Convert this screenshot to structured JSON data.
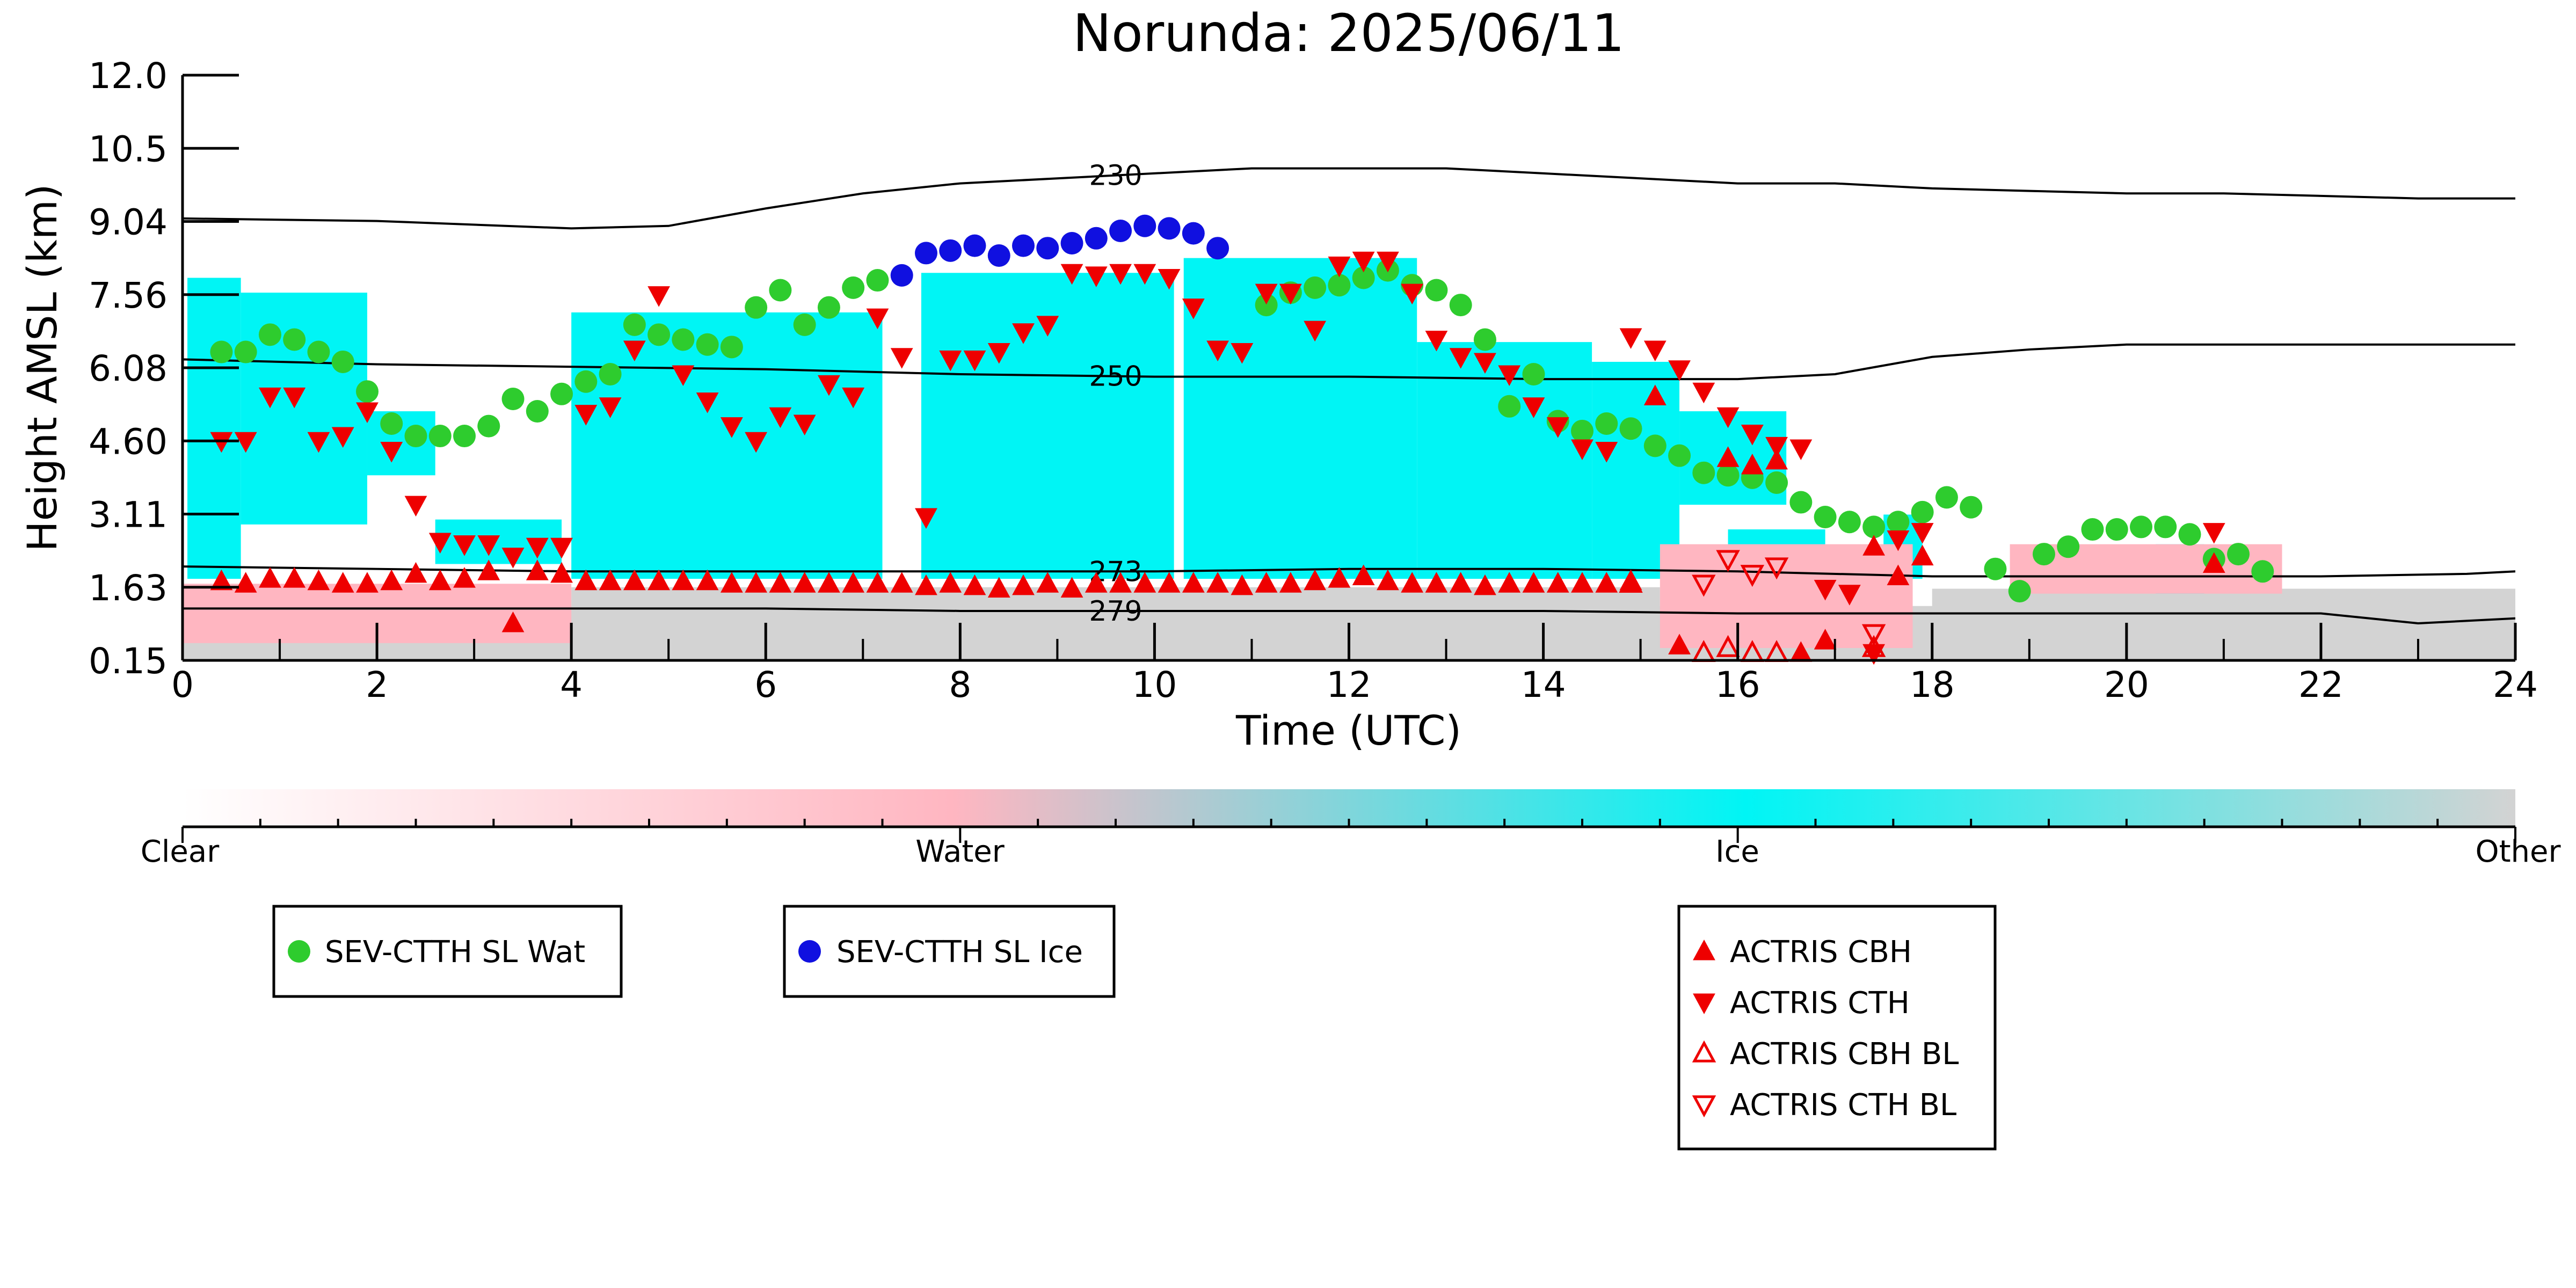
{
  "chart_data": {
    "type": "scatter",
    "title": "Norunda: 2025/06/11",
    "xlabel": "Time (UTC)",
    "ylabel": "Height AMSL (km)",
    "xlim": [
      0,
      24
    ],
    "x_ticks": [
      "0",
      "2",
      "4",
      "6",
      "8",
      "10",
      "12",
      "14",
      "16",
      "18",
      "20",
      "22",
      "24"
    ],
    "y_ticks": [
      "0.15",
      "1.63",
      "3.11",
      "4.60",
      "6.08",
      "7.56",
      "9.04",
      "10.5",
      "12.0"
    ],
    "y_tick_values": [
      0.15,
      1.63,
      3.11,
      4.6,
      6.08,
      7.56,
      9.04,
      10.5,
      12.0
    ],
    "colorbar": {
      "labels": [
        "Clear",
        "Water",
        "Ice",
        "Other"
      ],
      "colors": [
        "#ffffff",
        "#ffb6c1",
        "#00f5f5",
        "#d3d3d3"
      ]
    },
    "background_classes": {
      "ice_color": "#00f5f5",
      "water_color": "#ffb6c1",
      "other_color": "#d3d3d3",
      "ice_blocks": [
        {
          "x0": 0.05,
          "x1": 0.6,
          "ytop": 7.9,
          "ybot": 1.8
        },
        {
          "x0": 0.6,
          "x1": 1.9,
          "ytop": 7.6,
          "ybot": 2.9
        },
        {
          "x0": 1.9,
          "x1": 2.6,
          "ytop": 5.2,
          "ybot": 3.9
        },
        {
          "x0": 2.6,
          "x1": 3.9,
          "ytop": 3.0,
          "ybot": 2.1
        },
        {
          "x0": 4.0,
          "x1": 7.2,
          "ytop": 7.2,
          "ybot": 1.8
        },
        {
          "x0": 7.6,
          "x1": 10.2,
          "ytop": 8.0,
          "ybot": 1.8
        },
        {
          "x0": 10.3,
          "x1": 12.7,
          "ytop": 8.3,
          "ybot": 1.8
        },
        {
          "x0": 12.7,
          "x1": 14.5,
          "ytop": 6.6,
          "ybot": 1.8
        },
        {
          "x0": 14.5,
          "x1": 15.4,
          "ytop": 6.2,
          "ybot": 1.8
        },
        {
          "x0": 15.4,
          "x1": 16.5,
          "ytop": 5.2,
          "ybot": 3.3
        },
        {
          "x0": 15.9,
          "x1": 16.9,
          "ytop": 2.8,
          "ybot": 1.8
        },
        {
          "x0": 17.5,
          "x1": 17.9,
          "ytop": 3.1,
          "ybot": 1.8
        },
        {
          "x0": 20.3,
          "x1": 20.8,
          "ytop": 2.5,
          "ybot": 1.5
        }
      ],
      "water_blocks": [
        {
          "x0": 0.0,
          "x1": 4.0,
          "ytop": 1.7,
          "ybot": 0.5
        },
        {
          "x0": 15.2,
          "x1": 17.8,
          "ytop": 2.5,
          "ybot": 0.4
        },
        {
          "x0": 18.8,
          "x1": 21.6,
          "ytop": 2.5,
          "ybot": 1.5
        }
      ],
      "other_blocks": [
        {
          "x0": 0.0,
          "x1": 24.0,
          "ytop": 1.25,
          "ybot": 0.15
        },
        {
          "x0": 4.0,
          "x1": 15.2,
          "ytop": 1.63,
          "ybot": 0.15
        },
        {
          "x0": 18.0,
          "x1": 24.0,
          "ytop": 1.6,
          "ybot": 0.15
        }
      ]
    },
    "contours": [
      {
        "label": "230",
        "label_x": 9.6,
        "x": [
          0,
          2,
          4,
          5,
          6,
          7,
          8,
          9,
          10,
          11,
          12,
          13,
          14,
          15,
          16,
          17,
          18,
          19,
          20,
          21,
          22,
          23,
          24
        ],
        "y": [
          9.1,
          9.05,
          8.9,
          8.95,
          9.3,
          9.6,
          9.8,
          9.9,
          10.0,
          10.1,
          10.1,
          10.1,
          10.0,
          9.9,
          9.8,
          9.8,
          9.7,
          9.65,
          9.6,
          9.6,
          9.55,
          9.5,
          9.5
        ]
      },
      {
        "label": "250",
        "label_x": 9.6,
        "x": [
          0,
          2,
          4,
          6,
          8,
          10,
          12,
          14,
          15,
          16,
          17,
          18,
          19,
          20,
          21,
          22,
          23,
          24
        ],
        "y": [
          6.25,
          6.15,
          6.1,
          6.05,
          5.95,
          5.9,
          5.9,
          5.85,
          5.85,
          5.85,
          5.95,
          6.3,
          6.45,
          6.55,
          6.55,
          6.55,
          6.55,
          6.55
        ]
      },
      {
        "label": "273",
        "label_x": 9.6,
        "x": [
          0,
          2,
          4,
          6,
          8,
          10,
          12,
          14,
          16,
          18,
          20,
          22,
          23.5,
          24
        ],
        "y": [
          2.05,
          2.0,
          1.95,
          1.95,
          1.95,
          1.95,
          2.0,
          2.0,
          1.95,
          1.85,
          1.85,
          1.85,
          1.9,
          1.95
        ]
      },
      {
        "label": "279",
        "label_x": 9.6,
        "x": [
          0,
          2,
          4,
          6,
          8,
          10,
          12,
          14,
          16,
          18,
          20,
          22,
          23,
          24
        ],
        "y": [
          1.2,
          1.2,
          1.2,
          1.2,
          1.15,
          1.15,
          1.15,
          1.15,
          1.1,
          1.1,
          1.1,
          1.1,
          0.9,
          1.0
        ]
      }
    ],
    "series": [
      {
        "name": "SEV-CTTH SL Wat",
        "marker": "circle",
        "color": "#2ecc2e",
        "x": [
          0.4,
          0.65,
          0.9,
          1.15,
          1.4,
          1.65,
          1.9,
          2.15,
          2.4,
          2.65,
          2.9,
          3.15,
          3.4,
          3.65,
          3.9,
          4.15,
          4.4,
          4.65,
          4.9,
          5.15,
          5.4,
          5.65,
          5.9,
          6.15,
          6.4,
          6.65,
          6.9,
          7.15,
          11.15,
          11.4,
          11.65,
          11.9,
          12.15,
          12.4,
          12.65,
          12.9,
          13.15,
          13.4,
          13.65,
          13.9,
          14.15,
          14.4,
          14.65,
          14.9,
          15.15,
          15.4,
          15.65,
          15.9,
          16.15,
          16.4,
          16.65,
          16.9,
          17.15,
          17.4,
          17.65,
          17.9,
          18.15,
          18.4,
          18.65,
          18.9,
          19.15,
          19.4,
          19.65,
          19.9,
          20.15,
          20.4,
          20.65,
          20.9,
          21.15,
          21.4
        ],
        "y": [
          6.4,
          6.4,
          6.75,
          6.65,
          6.4,
          6.2,
          5.6,
          4.95,
          4.7,
          4.7,
          4.7,
          4.9,
          5.45,
          5.2,
          5.55,
          5.8,
          5.95,
          6.95,
          6.75,
          6.65,
          6.55,
          6.5,
          7.3,
          7.65,
          6.95,
          7.3,
          7.7,
          7.85,
          7.35,
          7.6,
          7.7,
          7.75,
          7.9,
          8.05,
          7.75,
          7.65,
          7.35,
          6.65,
          5.3,
          5.95,
          5.0,
          4.8,
          4.95,
          4.85,
          4.5,
          4.3,
          3.95,
          3.9,
          3.85,
          3.75,
          3.35,
          3.05,
          2.95,
          2.85,
          2.95,
          3.15,
          3.45,
          3.25,
          2.0,
          1.55,
          2.3,
          2.45,
          2.8,
          2.8,
          2.85,
          2.85,
          2.7,
          2.2,
          2.3,
          1.95
        ]
      },
      {
        "name": "SEV-CTTH SL Ice",
        "marker": "circle",
        "color": "#1010e0",
        "x": [
          7.4,
          7.65,
          7.9,
          8.15,
          8.4,
          8.65,
          8.9,
          9.15,
          9.4,
          9.65,
          9.9,
          10.15,
          10.4,
          10.65
        ],
        "y": [
          7.95,
          8.4,
          8.45,
          8.55,
          8.35,
          8.55,
          8.5,
          8.6,
          8.7,
          8.85,
          8.95,
          8.9,
          8.8,
          8.5
        ]
      },
      {
        "name": "ACTRIS CBH",
        "marker": "triangle-up",
        "color": "#ee0000",
        "x": [
          0.4,
          0.65,
          0.9,
          1.15,
          1.4,
          1.65,
          1.9,
          2.15,
          2.4,
          2.65,
          2.9,
          3.15,
          3.4,
          3.65,
          3.9,
          4.15,
          4.4,
          4.65,
          4.9,
          5.15,
          5.4,
          5.65,
          5.9,
          6.15,
          6.4,
          6.65,
          6.9,
          7.15,
          7.4,
          7.65,
          7.9,
          8.15,
          8.4,
          8.65,
          8.9,
          9.15,
          9.4,
          9.65,
          9.9,
          10.15,
          10.4,
          10.65,
          10.9,
          11.15,
          11.4,
          11.65,
          11.9,
          12.15,
          12.4,
          12.65,
          12.9,
          13.15,
          13.4,
          13.65,
          13.9,
          14.15,
          14.4,
          14.65,
          14.9,
          15.15,
          15.4,
          15.9,
          16.15,
          16.4,
          16.65,
          16.9,
          17.4,
          17.65,
          17.9,
          20.9
        ],
        "y": [
          1.75,
          1.7,
          1.8,
          1.8,
          1.75,
          1.7,
          1.7,
          1.75,
          1.9,
          1.75,
          1.8,
          1.95,
          0.9,
          1.95,
          1.9,
          1.75,
          1.75,
          1.75,
          1.75,
          1.75,
          1.75,
          1.7,
          1.7,
          1.7,
          1.7,
          1.7,
          1.7,
          1.7,
          1.7,
          1.65,
          1.7,
          1.65,
          1.6,
          1.65,
          1.7,
          1.6,
          1.7,
          1.7,
          1.7,
          1.7,
          1.7,
          1.7,
          1.65,
          1.7,
          1.7,
          1.75,
          1.8,
          1.85,
          1.75,
          1.7,
          1.7,
          1.7,
          1.65,
          1.7,
          1.7,
          1.7,
          1.7,
          1.7,
          1.75,
          5.5,
          0.45,
          4.25,
          4.1,
          4.2,
          0.3,
          0.55,
          2.45,
          1.85,
          2.25,
          2.1
        ]
      },
      {
        "name": "ACTRIS CTH",
        "marker": "triangle-down",
        "color": "#ee0000",
        "x": [
          0.4,
          0.65,
          0.9,
          1.15,
          1.4,
          1.65,
          1.9,
          2.15,
          2.4,
          2.65,
          2.9,
          3.15,
          3.4,
          3.65,
          3.9,
          4.15,
          4.4,
          4.65,
          4.9,
          5.15,
          5.4,
          5.65,
          5.9,
          6.15,
          6.4,
          6.65,
          6.9,
          7.15,
          7.4,
          7.65,
          7.9,
          8.15,
          8.4,
          8.65,
          8.9,
          9.15,
          9.4,
          9.65,
          9.9,
          10.15,
          10.4,
          10.65,
          10.9,
          11.15,
          11.4,
          11.65,
          11.9,
          12.15,
          12.4,
          12.65,
          12.9,
          13.15,
          13.4,
          13.65,
          13.9,
          14.15,
          14.4,
          14.65,
          14.9,
          15.15,
          15.4,
          15.65,
          15.9,
          16.15,
          16.4,
          16.65,
          16.9,
          17.15,
          17.4,
          17.65,
          17.9,
          20.9
        ],
        "y": [
          4.6,
          4.6,
          5.5,
          5.5,
          4.6,
          4.7,
          5.2,
          4.4,
          3.3,
          2.55,
          2.5,
          2.5,
          2.25,
          2.45,
          2.45,
          5.15,
          5.3,
          6.45,
          7.55,
          5.95,
          5.4,
          4.9,
          4.6,
          5.1,
          4.95,
          5.75,
          5.5,
          7.1,
          6.3,
          3.05,
          6.25,
          6.25,
          6.4,
          6.8,
          6.95,
          8.0,
          7.95,
          8.0,
          8.0,
          7.9,
          7.3,
          6.45,
          6.4,
          7.6,
          7.6,
          6.85,
          8.15,
          8.25,
          8.25,
          7.6,
          6.65,
          6.3,
          6.2,
          5.95,
          5.3,
          4.9,
          4.45,
          4.4,
          6.7,
          6.45,
          6.05,
          5.6,
          5.1,
          4.75,
          4.5,
          4.45,
          1.6,
          1.5,
          0.3,
          2.6,
          2.75,
          2.75
        ]
      },
      {
        "name": "ACTRIS CBH BL",
        "marker": "triangle-up-open",
        "color": "#ee0000",
        "x": [
          14.9,
          15.65,
          15.9,
          16.15,
          16.4,
          17.4
        ],
        "y": [
          1.7,
          0.3,
          0.4,
          0.3,
          0.3,
          0.4
        ]
      },
      {
        "name": "ACTRIS CTH BL",
        "marker": "triangle-down-open",
        "color": "#ee0000",
        "x": [
          15.65,
          15.9,
          16.15,
          16.4,
          17.4
        ],
        "y": [
          1.7,
          2.2,
          1.9,
          2.05,
          0.7
        ]
      }
    ]
  },
  "legend": {
    "box1": [
      "SEV-CTTH SL Wat"
    ],
    "box2": [
      "SEV-CTTH SL Ice"
    ],
    "box3": [
      "ACTRIS CBH",
      "ACTRIS CTH",
      "ACTRIS CBH BL",
      "ACTRIS CTH BL"
    ]
  }
}
